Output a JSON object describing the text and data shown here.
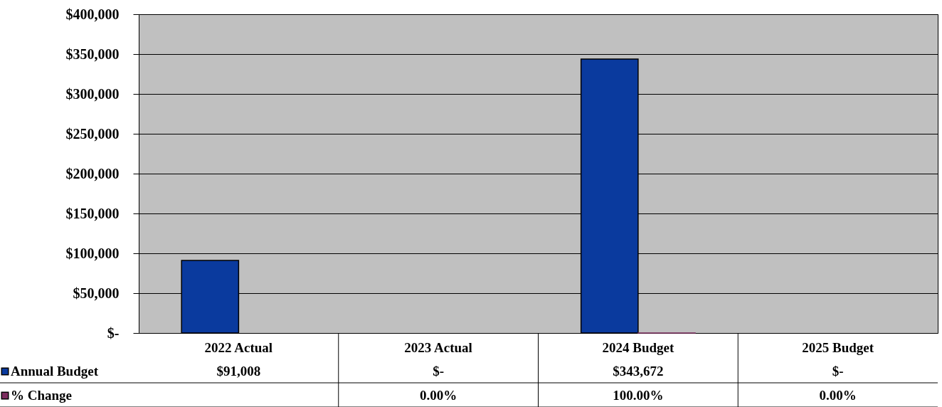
{
  "chart_data": {
    "type": "bar",
    "categories": [
      "2022 Actual",
      "2023 Actual",
      "2024 Budget",
      "2025 Budget"
    ],
    "series": [
      {
        "name": "Annual Budget",
        "color": "#0a3a9e",
        "values": [
          91008,
          0,
          343672,
          0
        ],
        "value_labels": [
          "$91,008",
          "$-",
          "$343,672",
          "$-"
        ]
      },
      {
        "name": "% Change",
        "color": "#7b2c5e",
        "values": [
          null,
          0,
          1,
          0
        ],
        "value_labels": [
          null,
          "0.00%",
          "100.00%",
          "0.00%"
        ]
      }
    ],
    "ylim": [
      0,
      400000
    ],
    "yticks": [
      {
        "value": 0,
        "label": "$-"
      },
      {
        "value": 50000,
        "label": "$50,000"
      },
      {
        "value": 100000,
        "label": "$100,000"
      },
      {
        "value": 150000,
        "label": "$150,000"
      },
      {
        "value": 200000,
        "label": "$200,000"
      },
      {
        "value": 250000,
        "label": "$250,000"
      },
      {
        "value": 300000,
        "label": "$300,000"
      },
      {
        "value": 350000,
        "label": "$350,000"
      },
      {
        "value": 400000,
        "label": "$400,000"
      }
    ],
    "grid": "y",
    "legend": "bottom left"
  }
}
